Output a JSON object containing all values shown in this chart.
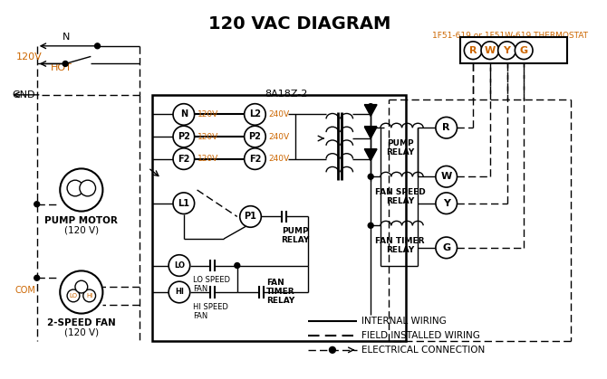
{
  "title": "120 VAC DIAGRAM",
  "title_fontsize": 14,
  "title_fontweight": "bold",
  "bg_color": "#ffffff",
  "text_color": "#000000",
  "orange_color": "#cc6600",
  "thermostat_label": "1F51-619 or 1F51W-619 THERMOSTAT",
  "control_box_label": "8A18Z-2",
  "legend_items": [
    {
      "label": "INTERNAL WIRING",
      "style": "solid"
    },
    {
      "label": "FIELD INSTALLED WIRING",
      "style": "dashed"
    },
    {
      "label": "ELECTRICAL CONNECTION",
      "style": "dot_arrow"
    }
  ]
}
